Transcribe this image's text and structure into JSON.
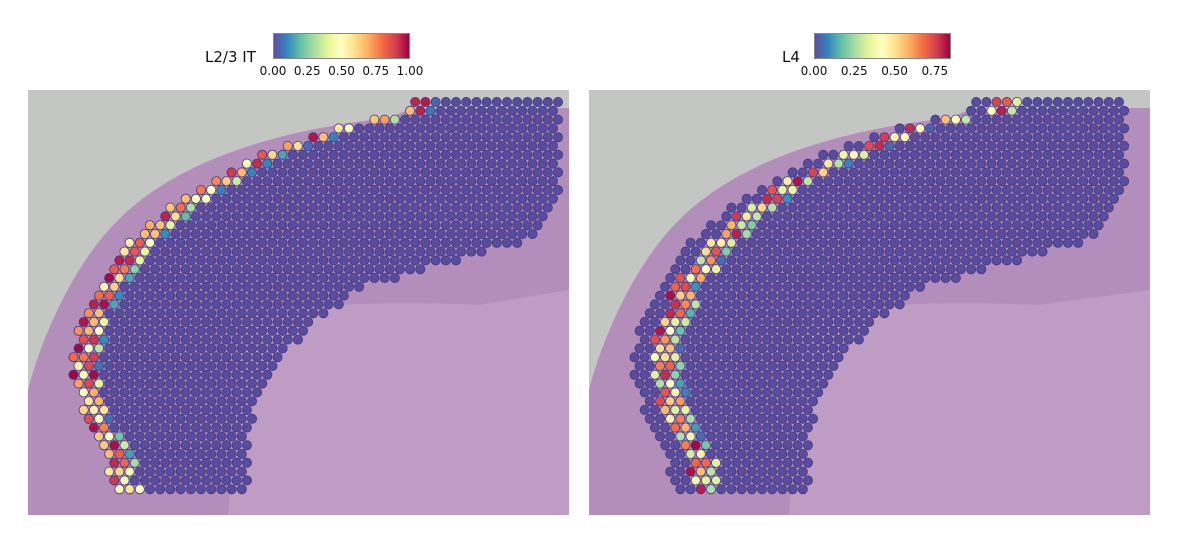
{
  "figure": {
    "panels": [
      {
        "title": "L2/3 IT",
        "colorbar_ticks": [
          "0.00",
          "0.25",
          "0.50",
          "0.75",
          "1.00"
        ],
        "colorbar_range": [
          0,
          1.0
        ]
      },
      {
        "title": "L4",
        "colorbar_ticks": [
          "0.00",
          "0.25",
          "0.50",
          "0.75"
        ],
        "colorbar_range": [
          0,
          0.85
        ]
      }
    ]
  },
  "colors": {
    "background_tissue": "#c4c6c4",
    "tissue_pink": "#b07ab8",
    "spot_zero": "#5a4c9c",
    "spot_edge": "#3e3680",
    "colormap": "Spectral_r"
  },
  "chart_data": [
    {
      "type": "heatmap",
      "title": "L2/3 IT",
      "description_of_values": "cell-type proportion per spatial spot",
      "colorbar": {
        "min": 0.0,
        "max": 1.0,
        "ticks": [
          0.0,
          0.25,
          0.5,
          0.75,
          1.0
        ]
      },
      "band": "outer cortical layer band (L2/3) with high values, 0.5–1.0"
    },
    {
      "type": "heatmap",
      "title": "L4",
      "description_of_values": "cell-type proportion per spatial spot",
      "colorbar": {
        "min": 0.0,
        "max": 0.85,
        "ticks": [
          0.0,
          0.25,
          0.5,
          0.75
        ]
      },
      "band": "layer band just inside L2/3 with mid-to-high values, 0.3–0.85"
    }
  ]
}
